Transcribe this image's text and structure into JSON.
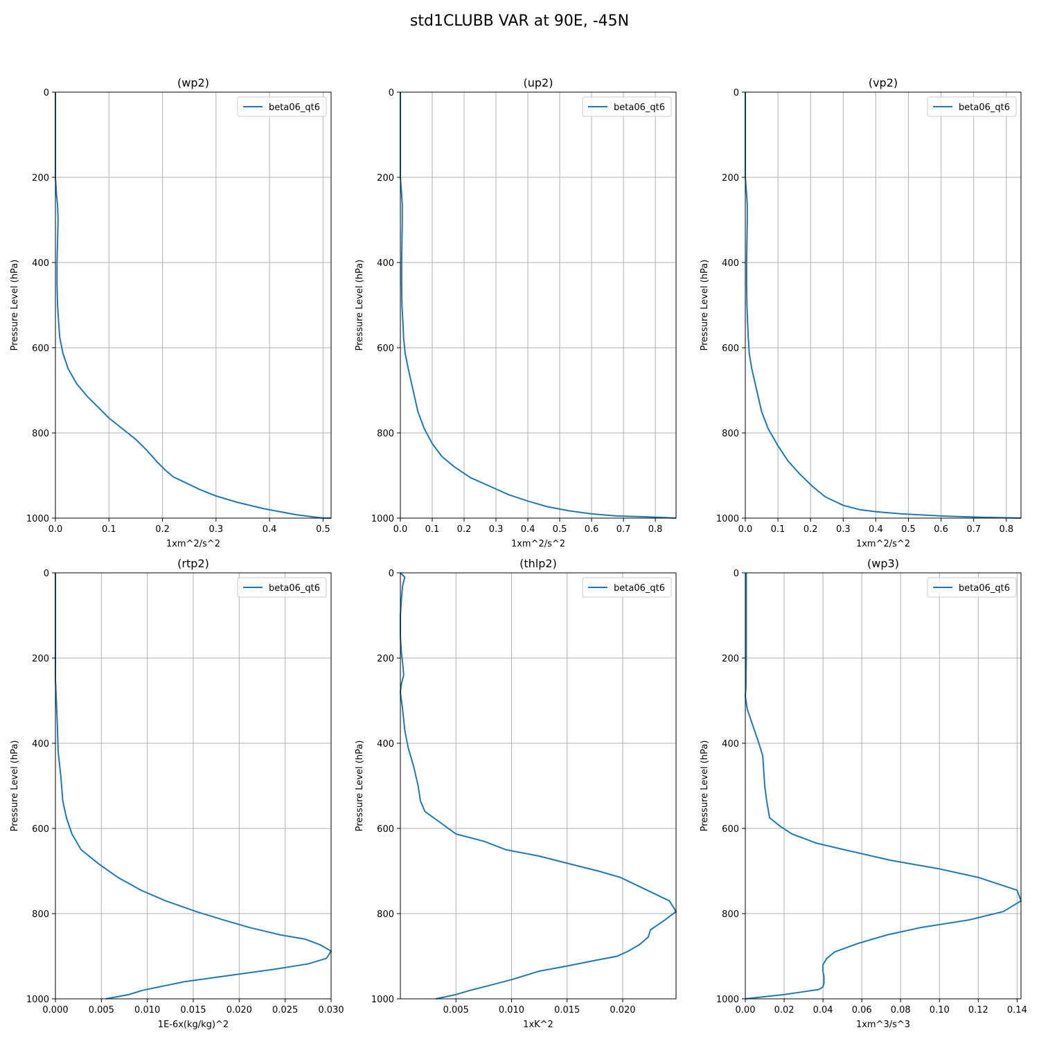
{
  "figure": {
    "suptitle": "std1CLUBB VAR at 90E, -45N"
  },
  "colors": {
    "series": "#1f77b4",
    "grid": "#b0b0b0",
    "axis": "#000000"
  },
  "chart_data": [
    {
      "type": "line",
      "title": "(wp2)",
      "xlabel": "1xm^2/s^2",
      "ylabel": "Pressure Level (hPa)",
      "xlim": [
        0,
        0.515
      ],
      "ylim": [
        1000,
        0
      ],
      "xticks": [
        0,
        0.1,
        0.2,
        0.3,
        0.4,
        0.5
      ],
      "xtick_labels": [
        "0.0",
        "0.1",
        "0.2",
        "0.3",
        "0.4",
        "0.5"
      ],
      "yticks": [
        0,
        200,
        400,
        600,
        800,
        1000
      ],
      "ytick_labels": [
        "0",
        "200",
        "400",
        "600",
        "800",
        "1000"
      ],
      "grid": true,
      "legend": "top-right",
      "series": [
        {
          "name": "beta06_qt6",
          "x": [
            0.0,
            0.0,
            0.002,
            0.004,
            0.005,
            0.004,
            0.003,
            0.003,
            0.004,
            0.006,
            0.008,
            0.014,
            0.024,
            0.04,
            0.06,
            0.08,
            0.1,
            0.125,
            0.15,
            0.17,
            0.19,
            0.205,
            0.22,
            0.245,
            0.27,
            0.3,
            0.34,
            0.39,
            0.45,
            0.5,
            0.515
          ],
          "y": [
            0,
            200,
            240,
            265,
            300,
            350,
            400,
            450,
            500,
            540,
            575,
            613,
            650,
            685,
            715,
            740,
            765,
            790,
            815,
            840,
            868,
            887,
            903,
            918,
            933,
            948,
            963,
            978,
            992,
            1000,
            1000
          ]
        }
      ]
    },
    {
      "type": "line",
      "title": "(up2)",
      "xlabel": "1xm^2/s^2",
      "ylabel": "Pressure Level (hPa)",
      "xlim": [
        0,
        0.865
      ],
      "ylim": [
        1000,
        0
      ],
      "xticks": [
        0,
        0.1,
        0.2,
        0.3,
        0.4,
        0.5,
        0.6,
        0.7,
        0.8
      ],
      "xtick_labels": [
        "0.0",
        "0.1",
        "0.2",
        "0.3",
        "0.4",
        "0.5",
        "0.6",
        "0.7",
        "0.8"
      ],
      "yticks": [
        0,
        200,
        400,
        600,
        800,
        1000
      ],
      "ytick_labels": [
        "0",
        "200",
        "400",
        "600",
        "800",
        "1000"
      ],
      "grid": true,
      "legend": "top-right",
      "series": [
        {
          "name": "beta06_qt6",
          "x": [
            0.0,
            0.0,
            0.004,
            0.006,
            0.006,
            0.005,
            0.004,
            0.004,
            0.005,
            0.008,
            0.01,
            0.015,
            0.025,
            0.04,
            0.055,
            0.075,
            0.1,
            0.13,
            0.17,
            0.22,
            0.28,
            0.34,
            0.4,
            0.46,
            0.53,
            0.6,
            0.68,
            0.77,
            0.865
          ],
          "y": [
            0,
            200,
            240,
            265,
            300,
            350,
            400,
            450,
            500,
            540,
            575,
            613,
            650,
            700,
            750,
            790,
            825,
            855,
            880,
            905,
            925,
            945,
            960,
            973,
            983,
            990,
            995,
            997,
            1000
          ]
        }
      ]
    },
    {
      "type": "line",
      "title": "(vp2)",
      "xlabel": "1xm^2/s^2",
      "ylabel": "Pressure Level (hPa)",
      "xlim": [
        0,
        0.845
      ],
      "ylim": [
        1000,
        0
      ],
      "xticks": [
        0,
        0.1,
        0.2,
        0.3,
        0.4,
        0.5,
        0.6,
        0.7,
        0.8
      ],
      "xtick_labels": [
        "0.0",
        "0.1",
        "0.2",
        "0.3",
        "0.4",
        "0.5",
        "0.6",
        "0.7",
        "0.8"
      ],
      "yticks": [
        0,
        200,
        400,
        600,
        800,
        1000
      ],
      "ytick_labels": [
        "0",
        "200",
        "400",
        "600",
        "800",
        "1000"
      ],
      "grid": true,
      "legend": "top-right",
      "series": [
        {
          "name": "beta06_qt6",
          "x": [
            0.0,
            0.0,
            0.004,
            0.006,
            0.006,
            0.005,
            0.004,
            0.004,
            0.005,
            0.007,
            0.009,
            0.012,
            0.02,
            0.035,
            0.05,
            0.07,
            0.1,
            0.13,
            0.165,
            0.205,
            0.245,
            0.3,
            0.35,
            0.4,
            0.48,
            0.6,
            0.72,
            0.845
          ],
          "y": [
            0,
            200,
            240,
            265,
            300,
            350,
            400,
            450,
            500,
            540,
            575,
            613,
            650,
            700,
            750,
            790,
            830,
            865,
            895,
            925,
            950,
            970,
            980,
            985,
            990,
            995,
            998,
            1000
          ]
        }
      ]
    },
    {
      "type": "line",
      "title": "(rtp2)",
      "xlabel": "1E-6x(kg/kg)^2",
      "ylabel": "Pressure Level (hPa)",
      "xlim": [
        0,
        0.03
      ],
      "ylim": [
        1000,
        0
      ],
      "xticks": [
        0,
        0.005,
        0.01,
        0.015,
        0.02,
        0.025,
        0.03
      ],
      "xtick_labels": [
        "0.000",
        "0.005",
        "0.010",
        "0.015",
        "0.020",
        "0.025",
        "0.030"
      ],
      "yticks": [
        0,
        200,
        400,
        600,
        800,
        1000
      ],
      "ytick_labels": [
        "0",
        "200",
        "400",
        "600",
        "800",
        "1000"
      ],
      "grid": true,
      "legend": "top-right",
      "series": [
        {
          "name": "beta06_qt6",
          "x": [
            0.0,
            0.0,
            0.0001,
            0.0002,
            0.0003,
            0.0006,
            0.0008,
            0.0012,
            0.0018,
            0.0028,
            0.0047,
            0.0068,
            0.0093,
            0.012,
            0.0153,
            0.0183,
            0.0212,
            0.0245,
            0.0272,
            0.0288,
            0.03,
            0.0295,
            0.0275,
            0.024,
            0.019,
            0.014,
            0.0113,
            0.0095,
            0.008,
            0.0055
          ],
          "y": [
            0,
            250,
            300,
            350,
            420,
            480,
            535,
            575,
            613,
            650,
            683,
            715,
            745,
            770,
            795,
            815,
            833,
            850,
            860,
            873,
            888,
            905,
            918,
            930,
            945,
            960,
            972,
            980,
            990,
            1000
          ]
        }
      ]
    },
    {
      "type": "line",
      "title": "(thlp2)",
      "xlabel": "1xK^2",
      "ylabel": "Pressure Level (hPa)",
      "xlim": [
        0,
        0.0248
      ],
      "ylim": [
        1000,
        0
      ],
      "xticks": [
        0.005,
        0.01,
        0.015,
        0.02
      ],
      "xtick_labels": [
        "0.005",
        "0.010",
        "0.015",
        "0.020"
      ],
      "yticks": [
        0,
        200,
        400,
        600,
        800,
        1000
      ],
      "ytick_labels": [
        "0",
        "200",
        "400",
        "600",
        "800",
        "1000"
      ],
      "grid": true,
      "legend": "top-right",
      "series": [
        {
          "name": "beta06_qt6",
          "x": [
            0.0,
            0.0004,
            0.0002,
            0.0001,
            0.0,
            0.0,
            0.0001,
            0.0002,
            0.0003,
            0.0001,
            0.0,
            0.0002,
            0.0004,
            0.0007,
            0.0012,
            0.0016,
            0.0018,
            0.0022,
            0.003,
            0.005,
            0.0075,
            0.0095,
            0.0125,
            0.0155,
            0.0178,
            0.0198,
            0.0222,
            0.0242,
            0.0248,
            0.0238,
            0.0225,
            0.0223,
            0.0215,
            0.0205,
            0.0195,
            0.0175,
            0.015,
            0.0125,
            0.01,
            0.0078,
            0.0063,
            0.005,
            0.0032
          ],
          "y": [
            0,
            10,
            30,
            60,
            100,
            150,
            190,
            210,
            240,
            260,
            280,
            320,
            370,
            410,
            455,
            500,
            535,
            560,
            575,
            613,
            630,
            650,
            665,
            685,
            700,
            715,
            745,
            770,
            795,
            815,
            838,
            855,
            873,
            888,
            900,
            910,
            923,
            935,
            955,
            970,
            980,
            990,
            1000
          ]
        }
      ]
    },
    {
      "type": "line",
      "title": "(wp3)",
      "xlabel": "1xm^3/s^3",
      "ylabel": "Pressure Level (hPa)",
      "xlim": [
        0,
        0.142
      ],
      "ylim": [
        1000,
        0
      ],
      "xticks": [
        0,
        0.02,
        0.04,
        0.06,
        0.08,
        0.1,
        0.12,
        0.14
      ],
      "xtick_labels": [
        "0.00",
        "0.02",
        "0.04",
        "0.06",
        "0.08",
        "0.10",
        "0.12",
        "0.14"
      ],
      "yticks": [
        0,
        200,
        400,
        600,
        800,
        1000
      ],
      "ytick_labels": [
        "0",
        "200",
        "400",
        "600",
        "800",
        "1000"
      ],
      "grid": true,
      "legend": "top-right",
      "series": [
        {
          "name": "beta06_qt6",
          "x": [
            0.0005,
            0.0005,
            0.0003,
            0.0,
            0.001,
            0.004,
            0.007,
            0.009,
            0.0095,
            0.01,
            0.011,
            0.0125,
            0.018,
            0.024,
            0.037,
            0.051,
            0.075,
            0.1,
            0.12,
            0.14,
            0.142,
            0.133,
            0.115,
            0.09,
            0.073,
            0.058,
            0.052,
            0.046,
            0.042,
            0.04,
            0.04,
            0.0405,
            0.0405,
            0.04,
            0.038,
            0.032,
            0.02,
            0.01,
            0.0
          ],
          "y": [
            0,
            200,
            270,
            290,
            320,
            360,
            400,
            430,
            465,
            500,
            535,
            575,
            595,
            613,
            635,
            650,
            675,
            695,
            715,
            745,
            770,
            795,
            815,
            833,
            850,
            870,
            880,
            890,
            905,
            920,
            935,
            948,
            963,
            972,
            978,
            982,
            990,
            995,
            1000
          ]
        }
      ]
    }
  ]
}
